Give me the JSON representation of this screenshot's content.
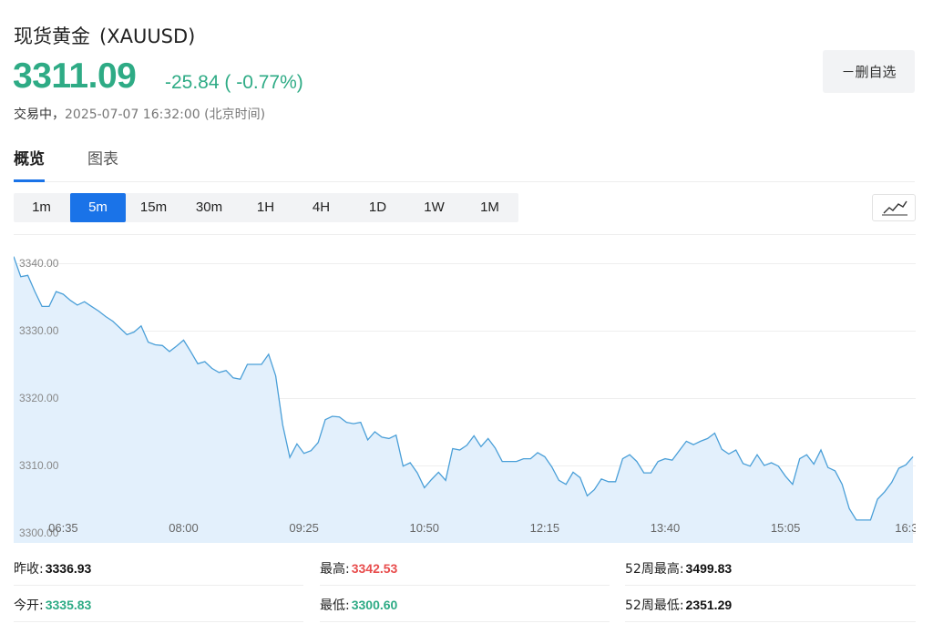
{
  "header": {
    "name": "现货黄金",
    "code": "(XAUUSD)",
    "price": "3311.09",
    "change": "-25.84 ( -0.77%)",
    "status_label": "交易中，",
    "timestamp": "2025-07-07 16:32:00 (北京时间)",
    "watch_button": "－删自选"
  },
  "tabs": [
    {
      "label": "概览",
      "active": true
    },
    {
      "label": "图表",
      "active": false
    }
  ],
  "timeframes": [
    {
      "label": "1m"
    },
    {
      "label": "5m",
      "active": true
    },
    {
      "label": "15m"
    },
    {
      "label": "30m"
    },
    {
      "label": "1H"
    },
    {
      "label": "4H"
    },
    {
      "label": "1D"
    },
    {
      "label": "1W"
    },
    {
      "label": "1M"
    }
  ],
  "chart_type_icon": "line-chart-icon",
  "colors": {
    "up": "#2eab85",
    "down_red": "#e84c4c",
    "accent": "#1a73e8",
    "line": "#4a9fd8",
    "area": "#e3f0fc"
  },
  "chart_data": {
    "type": "area",
    "ylim": [
      3300,
      3344
    ],
    "y_ticks": [
      "3340.00",
      "3330.00",
      "3320.00",
      "3310.00",
      "3300.00"
    ],
    "y_tick_values": [
      3340,
      3330,
      3320,
      3310,
      3300
    ],
    "x_ticks": [
      "06:35",
      "08:00",
      "09:25",
      "10:50",
      "12:15",
      "13:40",
      "15:05",
      "16:3"
    ],
    "x_tick_index": [
      7,
      24,
      41,
      58,
      75,
      92,
      109,
      126
    ],
    "grid": true,
    "values": [
      3341.0,
      3338.0,
      3338.2,
      3335.8,
      3333.6,
      3333.6,
      3335.8,
      3335.4,
      3334.5,
      3333.8,
      3334.3,
      3333.6,
      3332.9,
      3332.1,
      3331.4,
      3330.4,
      3329.4,
      3329.8,
      3330.7,
      3328.3,
      3327.9,
      3327.8,
      3326.9,
      3327.7,
      3328.6,
      3326.9,
      3325.1,
      3325.4,
      3324.4,
      3323.8,
      3324.1,
      3323.0,
      3322.8,
      3325.0,
      3325.0,
      3325.0,
      3326.5,
      3323.3,
      3316.0,
      3311.2,
      3313.2,
      3311.8,
      3312.2,
      3313.4,
      3316.8,
      3317.3,
      3317.2,
      3316.4,
      3316.2,
      3316.4,
      3313.8,
      3315.0,
      3314.2,
      3314.0,
      3314.5,
      3309.9,
      3310.4,
      3308.9,
      3306.7,
      3307.9,
      3309.0,
      3307.8,
      3312.5,
      3312.3,
      3313.0,
      3314.4,
      3312.8,
      3314.0,
      3312.6,
      3310.6,
      3310.6,
      3310.6,
      3311.0,
      3311.0,
      3311.9,
      3311.3,
      3309.8,
      3307.8,
      3307.2,
      3309.0,
      3308.2,
      3305.5,
      3306.4,
      3308.0,
      3307.6,
      3307.6,
      3311.0,
      3311.6,
      3310.6,
      3308.9,
      3308.9,
      3310.6,
      3311.0,
      3310.8,
      3312.2,
      3313.6,
      3313.1,
      3313.6,
      3314.0,
      3314.8,
      3312.4,
      3311.7,
      3312.3,
      3310.3,
      3309.9,
      3311.6,
      3310.0,
      3310.4,
      3309.9,
      3308.4,
      3307.2,
      3311.0,
      3311.6,
      3310.2,
      3312.3,
      3309.7,
      3309.2,
      3307.2,
      3303.6,
      3301.9,
      3301.9,
      3301.9,
      3305.0,
      3306.1,
      3307.5,
      3309.6,
      3310.1,
      3311.3
    ]
  },
  "stats": [
    {
      "label": "昨收:",
      "value": "3336.93",
      "tone": "plain"
    },
    {
      "label": "最高:",
      "value": "3342.53",
      "tone": "up"
    },
    {
      "label": "52周最高:",
      "value": "3499.83",
      "tone": "plain"
    },
    {
      "label": "今开:",
      "value": "3335.83",
      "tone": "down"
    },
    {
      "label": "最低:",
      "value": "3300.60",
      "tone": "down"
    },
    {
      "label": "52周最低:",
      "value": "2351.29",
      "tone": "plain"
    }
  ]
}
